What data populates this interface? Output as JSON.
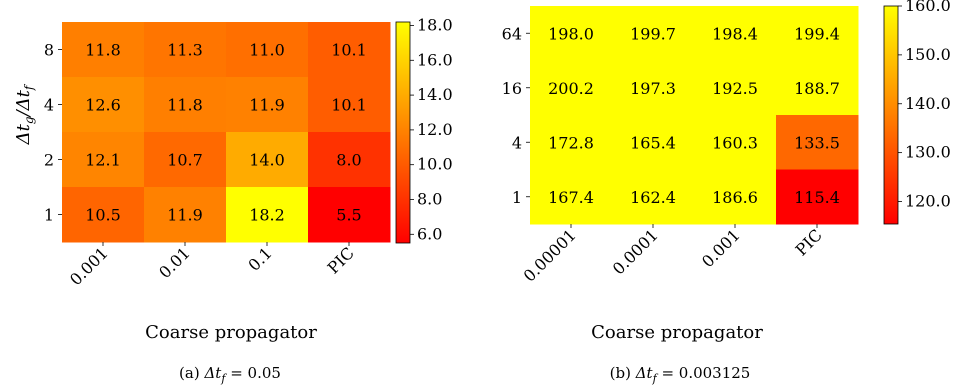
{
  "chart_data": [
    {
      "type": "heatmap",
      "caption": "(a) Δt_f = 0.05",
      "xlabel": "Coarse propagator",
      "ylabel": "Δt_g/Δt_f",
      "x_categories": [
        "0.001",
        "0.01",
        "0.1",
        "PIC"
      ],
      "y_categories": [
        "8",
        "4",
        "2",
        "1"
      ],
      "values": [
        [
          11.8,
          11.3,
          11.0,
          10.1
        ],
        [
          12.6,
          11.8,
          11.9,
          10.1
        ],
        [
          12.1,
          10.7,
          14.0,
          8.0
        ],
        [
          10.5,
          11.9,
          18.2,
          5.5
        ]
      ],
      "colorbar": {
        "min": 5.5,
        "max": 18.2,
        "ticks": [
          "6.0",
          "8.0",
          "10.0",
          "12.0",
          "14.0",
          "16.0",
          "18.0"
        ]
      },
      "colormap": [
        "#ff0000",
        "#ff8000",
        "#ffff00"
      ]
    },
    {
      "type": "heatmap",
      "caption": "(b) Δt_f = 0.003125",
      "xlabel": "Coarse propagator",
      "ylabel": "",
      "x_categories": [
        "0.00001",
        "0.0001",
        "0.001",
        "PIC"
      ],
      "y_categories": [
        "64",
        "16",
        "4",
        "1"
      ],
      "values": [
        [
          198.0,
          199.7,
          198.4,
          199.4
        ],
        [
          200.2,
          197.3,
          192.5,
          188.7
        ],
        [
          172.8,
          165.4,
          160.3,
          133.5
        ],
        [
          167.4,
          162.4,
          186.6,
          115.4
        ]
      ],
      "colorbar": {
        "min": 115.4,
        "max": 160.0,
        "ticks": [
          "120.0",
          "130.0",
          "140.0",
          "150.0",
          "160.0"
        ]
      },
      "colormap": [
        "#ff0000",
        "#ff8000",
        "#ffff00"
      ]
    }
  ]
}
